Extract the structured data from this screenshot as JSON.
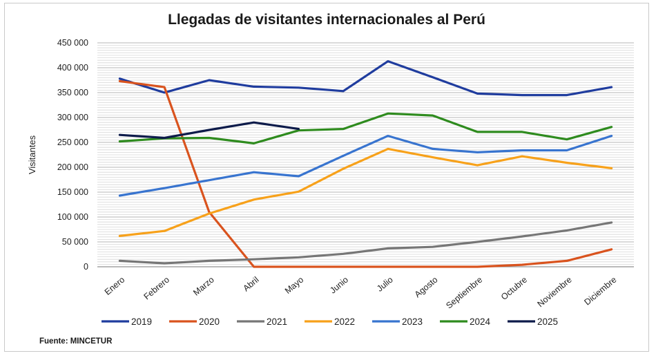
{
  "chart_data": {
    "type": "line",
    "title": "Llegadas de visitantes internacionales al Perú",
    "xlabel": "",
    "ylabel": "Visitantes",
    "ylim": [
      0,
      450000
    ],
    "yticks": [
      0,
      50000,
      100000,
      150000,
      200000,
      250000,
      300000,
      350000,
      400000,
      450000
    ],
    "ytick_labels": [
      "0",
      "50 000",
      "100 000",
      "150 000",
      "200 000",
      "250 000",
      "300 000",
      "350 000",
      "400 000",
      "450 000"
    ],
    "categories": [
      "Enero",
      "Febrero",
      "Marzo",
      "Abril",
      "Mayo",
      "Junio",
      "Julio",
      "Agosto",
      "Septiembre",
      "Octubre",
      "Noviembre",
      "Diciembre"
    ],
    "grid": true,
    "legend_position": "bottom",
    "series": [
      {
        "name": "2019",
        "color": "#1f3c9e",
        "values": [
          378000,
          350000,
          375000,
          362000,
          360000,
          353000,
          413000,
          381000,
          348000,
          345000,
          345000,
          361000
        ]
      },
      {
        "name": "2020",
        "color": "#d9531e",
        "values": [
          373000,
          361000,
          110000,
          0,
          0,
          0,
          0,
          0,
          0,
          4000,
          12000,
          35000
        ]
      },
      {
        "name": "2021",
        "color": "#767676",
        "values": [
          12000,
          7000,
          12000,
          15000,
          19000,
          26000,
          37000,
          40000,
          50000,
          61000,
          73000,
          89000
        ]
      },
      {
        "name": "2022",
        "color": "#f7a11a",
        "values": [
          62000,
          72000,
          107000,
          135000,
          151000,
          197000,
          237000,
          220000,
          204000,
          222000,
          209000,
          198000
        ]
      },
      {
        "name": "2023",
        "color": "#3874cf",
        "values": [
          143000,
          158000,
          174000,
          190000,
          182000,
          223000,
          263000,
          237000,
          230000,
          234000,
          234000,
          263000
        ]
      },
      {
        "name": "2024",
        "color": "#2e8b1e",
        "values": [
          252000,
          258000,
          259000,
          248000,
          274000,
          277000,
          308000,
          304000,
          271000,
          271000,
          256000,
          281000
        ]
      },
      {
        "name": "2025",
        "color": "#0d1b4a",
        "values": [
          265000,
          259000,
          275000,
          290000,
          277000,
          null,
          null,
          null,
          null,
          null,
          null,
          null
        ]
      }
    ]
  },
  "source": "Fuente: MINCETUR"
}
